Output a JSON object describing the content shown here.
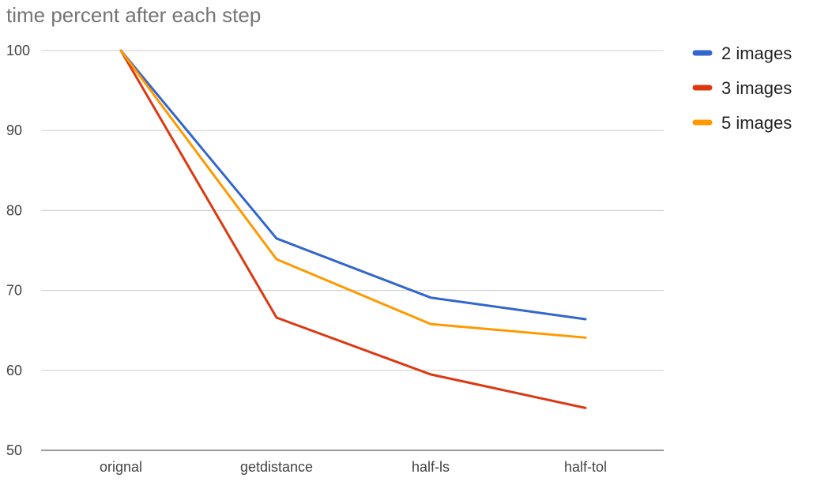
{
  "chart_data": {
    "type": "line",
    "title": "time percent after each step",
    "categories": [
      "orignal",
      "getdistance",
      "half-ls",
      "half-tol"
    ],
    "series": [
      {
        "name": "2 images",
        "color": "#3366cc",
        "values": [
          100,
          76.5,
          69.1,
          66.4
        ]
      },
      {
        "name": "3 images",
        "color": "#dc3912",
        "values": [
          100,
          66.6,
          59.5,
          55.3
        ]
      },
      {
        "name": "5 images",
        "color": "#ff9900",
        "values": [
          100,
          73.9,
          65.8,
          64.1
        ]
      }
    ],
    "yticks": [
      50,
      60,
      70,
      80,
      90,
      100
    ],
    "ylim": [
      50,
      100
    ],
    "xlabel": "",
    "ylabel": "",
    "grid": true,
    "legend": "right"
  }
}
